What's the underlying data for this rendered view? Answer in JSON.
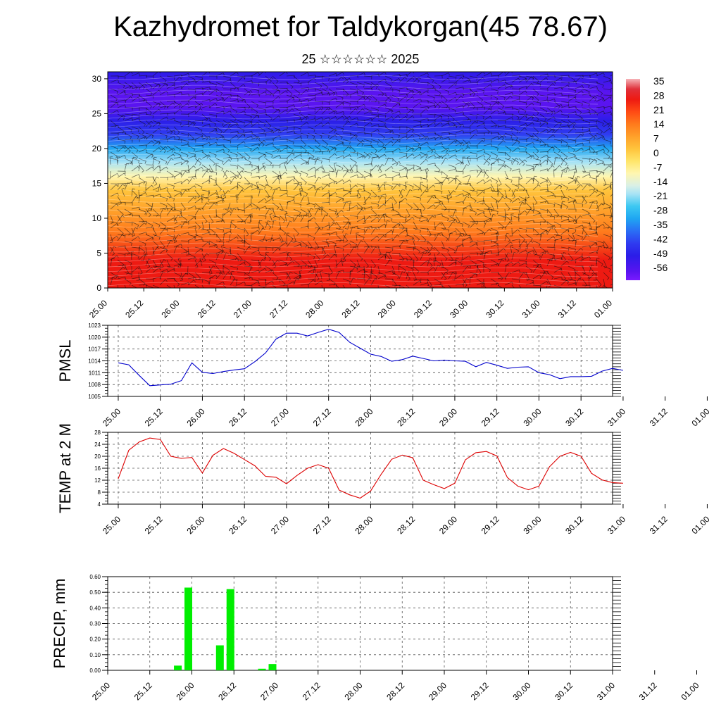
{
  "header": {
    "title": "Kazhydromet for Taldykorgan(45 78.67)",
    "subtitle": "25 ☆☆☆☆☆☆ 2025"
  },
  "colors": {
    "pmsl_line": "#0000cc",
    "temp_line": "#dd0000",
    "precip_bar": "#00ee00",
    "grid": "#555555"
  },
  "chart_data": [
    {
      "id": "cross_section",
      "type": "heatmap",
      "description_note": "",
      "x_ticks": [
        "25.00",
        "25.12",
        "26.00",
        "26.12",
        "27.00",
        "27.12",
        "28.00",
        "28.12",
        "29.00",
        "29.12",
        "30.00",
        "30.12",
        "31.00",
        "31.12",
        "01.00"
      ],
      "y_ticks": [
        "0",
        "5",
        "10",
        "15",
        "20",
        "25",
        "30"
      ],
      "ylim": [
        0,
        31
      ],
      "colorbar": {
        "labels": [
          "35",
          "28",
          "21",
          "14",
          "7",
          "0",
          "-7",
          "-14",
          "-21",
          "-28",
          "-35",
          "-42",
          "-49",
          "-56"
        ],
        "range": [
          -60,
          38
        ]
      },
      "level_temperature_profile": [
        {
          "z": 0,
          "t": 30
        },
        {
          "z": 4,
          "t": 26
        },
        {
          "z": 8,
          "t": 18
        },
        {
          "z": 11,
          "t": 10
        },
        {
          "z": 14,
          "t": 2
        },
        {
          "z": 16,
          "t": -8
        },
        {
          "z": 18,
          "t": -18
        },
        {
          "z": 20,
          "t": -28
        },
        {
          "z": 22,
          "t": -40
        },
        {
          "z": 24,
          "t": -52
        },
        {
          "z": 26,
          "t": -58
        },
        {
          "z": 28,
          "t": -55
        },
        {
          "z": 31,
          "t": -52
        }
      ]
    },
    {
      "id": "pmsl",
      "type": "line",
      "ylabel": "PMSL",
      "ylim": [
        1005,
        1023
      ],
      "y_ticks": [
        "1005",
        "1008",
        "1011",
        "1014",
        "1017",
        "1020",
        "1023"
      ],
      "x_ticks": [
        "25.00",
        "25.12",
        "26.00",
        "26.12",
        "27.00",
        "27.12",
        "28.00",
        "28.12",
        "29.00",
        "29.12",
        "30.00",
        "30.12",
        "31.00",
        "31.12",
        "01.00"
      ],
      "series": [
        {
          "x": [
            0,
            3,
            6,
            9,
            12,
            15,
            18,
            21,
            24,
            27,
            30,
            33,
            36,
            39,
            42,
            45,
            48,
            51,
            54,
            57,
            60,
            63,
            66,
            69,
            72,
            75,
            78,
            81,
            84,
            87,
            90,
            93,
            96,
            99,
            102,
            105,
            108,
            111,
            114,
            117,
            120,
            123,
            126,
            129,
            132,
            135,
            138,
            141,
            144
          ],
          "values": [
            1013.5,
            1013,
            1010.3,
            1007.7,
            1007.9,
            1008.1,
            1009,
            1013.5,
            1011.1,
            1010.8,
            1011.3,
            1011.7,
            1012,
            1013.8,
            1016,
            1019.5,
            1021,
            1021,
            1020.3,
            1021.2,
            1022,
            1021.2,
            1018.7,
            1017.2,
            1015.7,
            1015.1,
            1013.9,
            1014.3,
            1015.2,
            1014.6,
            1014,
            1014.2,
            1014,
            1013.9,
            1012.5,
            1013.6,
            1012.9,
            1012.1,
            1012.4,
            1012.5,
            1011,
            1010.5,
            1009.5,
            1010,
            1010,
            1010.1,
            1011.4,
            1012.1,
            1011.6
          ]
        }
      ]
    },
    {
      "id": "temp2m",
      "type": "line",
      "ylabel": "TEMP at 2 M",
      "ylim": [
        4,
        28
      ],
      "y_ticks": [
        "4",
        "8",
        "12",
        "16",
        "20",
        "24",
        "28"
      ],
      "x_ticks": [
        "25.00",
        "25.12",
        "26.00",
        "26.12",
        "27.00",
        "27.12",
        "28.00",
        "28.12",
        "29.00",
        "29.12",
        "30.00",
        "30.12",
        "31.00",
        "31.12",
        "01.00"
      ],
      "series": [
        {
          "x": [
            0,
            3,
            6,
            9,
            12,
            15,
            18,
            21,
            24,
            27,
            30,
            33,
            36,
            39,
            42,
            45,
            48,
            51,
            54,
            57,
            60,
            63,
            66,
            69,
            72,
            75,
            78,
            81,
            84,
            87,
            90,
            93,
            96,
            99,
            102,
            105,
            108,
            111,
            114,
            117,
            120,
            123,
            126,
            129,
            132,
            135,
            138,
            141,
            144
          ],
          "values": [
            12.5,
            22,
            24.8,
            26.1,
            25.6,
            20,
            19.3,
            19.6,
            14.4,
            20.3,
            22.6,
            21,
            18.9,
            16.8,
            13.3,
            13,
            10.8,
            13.6,
            16,
            17.2,
            16,
            8.7,
            7.1,
            6,
            8.4,
            14,
            19,
            20.4,
            19.5,
            12,
            10.5,
            9.2,
            11,
            18.8,
            21.2,
            21.6,
            20.1,
            12.9,
            10,
            8.8,
            10,
            16.5,
            20,
            21.3,
            20,
            14.3,
            12.1,
            11.2,
            11
          ]
        }
      ]
    },
    {
      "id": "precip",
      "type": "bar",
      "ylabel": "PRECIP, mm",
      "ylim": [
        0,
        0.6
      ],
      "y_ticks": [
        "0.00",
        "0.10",
        "0.20",
        "0.30",
        "0.40",
        "0.50",
        "0.60"
      ],
      "x_ticks": [
        "25.00",
        "25.12",
        "26.00",
        "26.12",
        "27.00",
        "27.12",
        "28.00",
        "28.12",
        "29.00",
        "29.12",
        "30.00",
        "30.12",
        "31.00",
        "31.12",
        "01.00"
      ],
      "bars": [
        {
          "hour": 21,
          "value": 0.03
        },
        {
          "hour": 24,
          "value": 0.53
        },
        {
          "hour": 33,
          "value": 0.16
        },
        {
          "hour": 36,
          "value": 0.52
        },
        {
          "hour": 45,
          "value": 0.01
        },
        {
          "hour": 48,
          "value": 0.04
        }
      ]
    }
  ]
}
